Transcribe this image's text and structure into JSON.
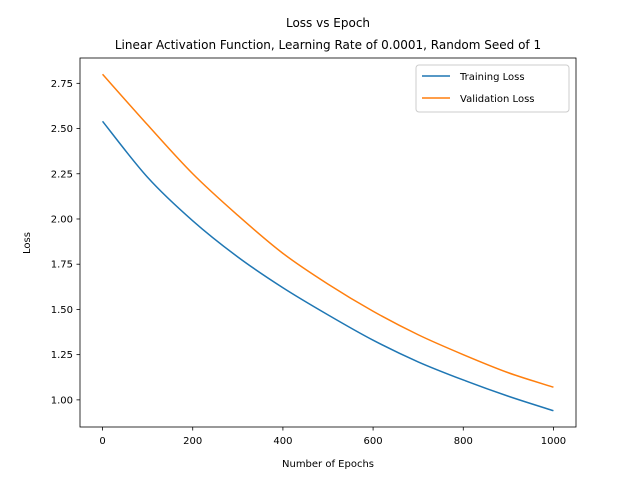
{
  "chart_data": {
    "type": "line",
    "title": "Loss vs Epoch",
    "subtitle": "Linear Activation Function, Learning Rate of 0.0001, Random Seed of 1",
    "xlabel": "Number of Epochs",
    "ylabel": "Loss",
    "xlim": [
      -50,
      1050
    ],
    "ylim": [
      0.85,
      2.89
    ],
    "xticks": [
      0,
      200,
      400,
      600,
      800,
      1000
    ],
    "yticks": [
      1.0,
      1.25,
      1.5,
      1.75,
      2.0,
      2.25,
      2.5,
      2.75
    ],
    "xtick_labels": [
      "0",
      "200",
      "400",
      "600",
      "800",
      "1000"
    ],
    "ytick_labels": [
      "1.00",
      "1.25",
      "1.50",
      "1.75",
      "2.00",
      "2.25",
      "2.50",
      "2.75"
    ],
    "grid": false,
    "legend_position": "top-right",
    "x": [
      0,
      100,
      200,
      300,
      400,
      500,
      600,
      700,
      800,
      900,
      1000
    ],
    "series": [
      {
        "name": "Training Loss",
        "color": "#1f77b4",
        "values": [
          2.54,
          2.23,
          1.99,
          1.79,
          1.62,
          1.47,
          1.33,
          1.21,
          1.11,
          1.02,
          0.94
        ]
      },
      {
        "name": "Validation Loss",
        "color": "#ff7f0e",
        "values": [
          2.8,
          2.52,
          2.25,
          2.02,
          1.81,
          1.64,
          1.49,
          1.36,
          1.25,
          1.15,
          1.07
        ]
      }
    ]
  }
}
